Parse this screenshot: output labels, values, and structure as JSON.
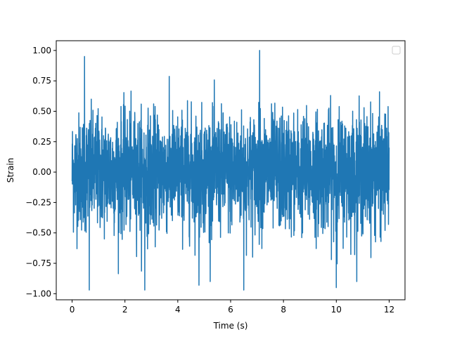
{
  "chart_data": {
    "type": "line",
    "title": "",
    "xlabel": "Time (s)",
    "ylabel": "Strain",
    "xlim": [
      -0.6,
      12.6
    ],
    "ylim": [
      -1.05,
      1.08
    ],
    "x_ticks": [
      0,
      2,
      4,
      6,
      8,
      10,
      12
    ],
    "x_tick_labels": [
      "0",
      "2",
      "4",
      "6",
      "8",
      "10",
      "12"
    ],
    "y_ticks": [
      -1.0,
      -0.75,
      -0.5,
      -0.25,
      0.0,
      0.25,
      0.5,
      0.75,
      1.0
    ],
    "y_tick_labels": [
      "−1.00",
      "−0.75",
      "−0.50",
      "−0.25",
      "0.00",
      "0.25",
      "0.50",
      "0.75",
      "1.00"
    ],
    "grid": false,
    "legend": {
      "placement": "top-right",
      "entries": []
    },
    "series": [
      {
        "color": "#1f77b4",
        "x_range": [
          0,
          12
        ],
        "amplitude_range": [
          -0.97,
          1.0
        ],
        "description": "dense noise signal sampled over 0-12 s",
        "peaks": [
          {
            "x": 0.47,
            "y": 0.95
          },
          {
            "x": 7.1,
            "y": 1.0
          },
          {
            "x": 0.65,
            "y": -0.97
          },
          {
            "x": 2.75,
            "y": -0.97
          },
          {
            "x": 4.8,
            "y": -0.93
          },
          {
            "x": 6.5,
            "y": -0.97
          },
          {
            "x": 10.0,
            "y": -0.95
          }
        ]
      }
    ]
  }
}
